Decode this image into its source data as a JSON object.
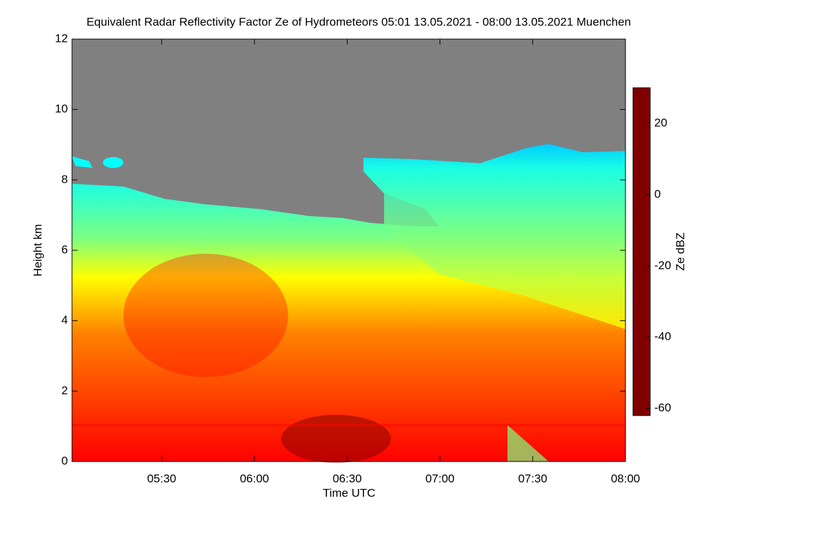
{
  "chart_data": {
    "type": "heatmap",
    "title": "Equivalent Radar Reflectivity Factor Ze of Hydrometeors   05:01 13.05.2021 - 08:00 13.05.2021 Muenchen",
    "x_label": "Time UTC",
    "y_label": "Height km",
    "xlim": [
      301,
      480
    ],
    "xticks": [
      {
        "value": 330,
        "label": "05:30"
      },
      {
        "value": 360,
        "label": "06:00"
      },
      {
        "value": 390,
        "label": "06:30"
      },
      {
        "value": 420,
        "label": "07:00"
      },
      {
        "value": 450,
        "label": "07:30"
      },
      {
        "value": 480,
        "label": "08:00"
      }
    ],
    "ylim": [
      0,
      12
    ],
    "yticks": [
      0,
      2,
      4,
      6,
      8,
      10,
      12
    ],
    "colorbar": {
      "label": "Ze dBZ",
      "lim": [
        -62,
        30
      ],
      "ticks": [
        -60,
        -40,
        -20,
        0,
        20
      ],
      "colormap": [
        "#808080",
        "#0000ff",
        "#00ffff",
        "#7fff7f",
        "#ffff00",
        "#ff8000",
        "#ff0000",
        "#800000"
      ]
    },
    "background": "#808080"
  }
}
